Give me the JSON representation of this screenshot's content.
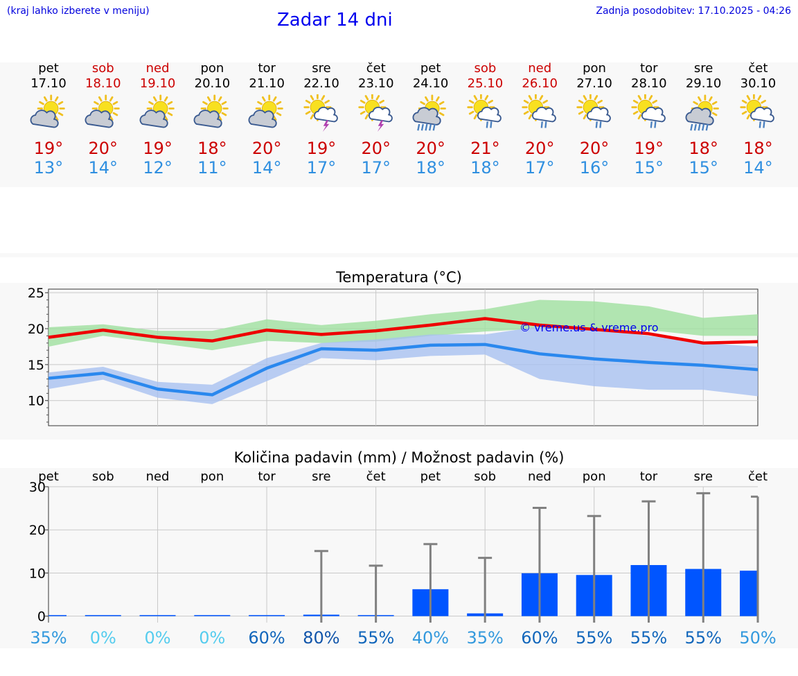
{
  "header": {
    "hint": "(kraj lahko izberete v meniju)",
    "title": "Zadar 14 dni",
    "updated": "Zadnja posodobitev: 17.10.2025 - 04:26"
  },
  "days": [
    {
      "name": "pet",
      "date": "17.10",
      "weekend": false,
      "icon": "partly-cloudy-icon",
      "tmax": "19°",
      "tmin": "13°"
    },
    {
      "name": "sob",
      "date": "18.10",
      "weekend": true,
      "icon": "partly-cloudy-icon",
      "tmax": "20°",
      "tmin": "14°"
    },
    {
      "name": "ned",
      "date": "19.10",
      "weekend": true,
      "icon": "partly-cloudy-icon",
      "tmax": "19°",
      "tmin": "12°"
    },
    {
      "name": "pon",
      "date": "20.10",
      "weekend": false,
      "icon": "partly-cloudy-icon",
      "tmax": "18°",
      "tmin": "11°"
    },
    {
      "name": "tor",
      "date": "21.10",
      "weekend": false,
      "icon": "partly-cloudy-icon",
      "tmax": "20°",
      "tmin": "14°"
    },
    {
      "name": "sre",
      "date": "22.10",
      "weekend": false,
      "icon": "thunderstorm-icon",
      "tmax": "19°",
      "tmin": "17°"
    },
    {
      "name": "čet",
      "date": "23.10",
      "weekend": false,
      "icon": "thunderstorm-icon",
      "tmax": "20°",
      "tmin": "17°"
    },
    {
      "name": "pet",
      "date": "24.10",
      "weekend": false,
      "icon": "heavy-rain-icon",
      "tmax": "20°",
      "tmin": "18°"
    },
    {
      "name": "sob",
      "date": "25.10",
      "weekend": true,
      "icon": "light-rain-icon",
      "tmax": "21°",
      "tmin": "18°"
    },
    {
      "name": "ned",
      "date": "26.10",
      "weekend": true,
      "icon": "light-rain-icon",
      "tmax": "20°",
      "tmin": "17°"
    },
    {
      "name": "pon",
      "date": "27.10",
      "weekend": false,
      "icon": "light-rain-icon",
      "tmax": "20°",
      "tmin": "16°"
    },
    {
      "name": "tor",
      "date": "28.10",
      "weekend": false,
      "icon": "light-rain-icon",
      "tmax": "19°",
      "tmin": "15°"
    },
    {
      "name": "sre",
      "date": "29.10",
      "weekend": false,
      "icon": "heavy-rain-icon",
      "tmax": "18°",
      "tmin": "15°"
    },
    {
      "name": "čet",
      "date": "30.10",
      "weekend": false,
      "icon": "light-rain-icon",
      "tmax": "18°",
      "tmin": "14°"
    }
  ],
  "colors": {
    "max_line": "#ee0000",
    "min_line": "#2a88ee",
    "max_band": "#9fe09f",
    "min_band": "#a8c0f0",
    "precip_bar": "#0055ff",
    "error_bar": "#808080",
    "weekend_text": "#cc0000",
    "lo_text": "#2f8fe0"
  },
  "chart_data": [
    {
      "type": "line",
      "title": "Temperatura (°C)",
      "watermark": "© vreme.us & vreme.pro",
      "ylim": [
        6.5,
        25.5
      ],
      "yticks": [
        "10",
        "15",
        "20",
        "25"
      ],
      "x": [
        0,
        1,
        2,
        3,
        4,
        5,
        6,
        7,
        8,
        9,
        10,
        11,
        12,
        13
      ],
      "series": [
        {
          "name": "max",
          "values": [
            18.8,
            19.8,
            18.8,
            18.3,
            19.8,
            19.2,
            19.7,
            20.5,
            21.4,
            20.5,
            19.9,
            19.3,
            18.0,
            18.2
          ],
          "band_low": [
            17.5,
            19.0,
            18.0,
            17.0,
            18.3,
            18.0,
            18.2,
            19.0,
            19.6,
            20.0,
            20.0,
            19.8,
            19.0,
            19.0
          ],
          "band_high": [
            20.2,
            20.6,
            19.7,
            19.7,
            21.3,
            20.5,
            21.1,
            22.0,
            22.7,
            24.0,
            23.8,
            23.1,
            21.5,
            22.0
          ]
        },
        {
          "name": "min",
          "values": [
            13.1,
            13.8,
            11.6,
            10.8,
            14.5,
            17.2,
            17.0,
            17.7,
            17.8,
            16.5,
            15.8,
            15.3,
            14.9,
            14.3
          ],
          "band_low": [
            11.6,
            12.9,
            10.4,
            9.5,
            12.7,
            15.9,
            15.6,
            16.2,
            16.4,
            13.0,
            12.0,
            11.5,
            11.5,
            10.6
          ],
          "band_high": [
            13.9,
            14.7,
            12.6,
            12.2,
            15.9,
            18.0,
            18.5,
            19.2,
            19.2,
            20.3,
            19.9,
            19.0,
            18.0,
            17.5
          ]
        }
      ]
    },
    {
      "type": "bar",
      "title": "Količina padavin (mm) / Možnost padavin (%)",
      "ylim": [
        -1.5,
        30
      ],
      "yticks": [
        "0",
        "10",
        "20",
        "30"
      ],
      "categories": [
        "pet",
        "sob",
        "ned",
        "pon",
        "tor",
        "sre",
        "čet",
        "pet",
        "sob",
        "ned",
        "pon",
        "tor",
        "sre",
        "čet"
      ],
      "values": [
        0,
        0,
        0,
        0,
        0,
        0.1,
        0,
        6.0,
        0.4,
        9.7,
        9.3,
        11.6,
        10.7,
        10.3
      ],
      "error_high": [
        0,
        0,
        0,
        0,
        0,
        15.1,
        11.7,
        16.7,
        13.5,
        25.1,
        23.2,
        26.6,
        28.5,
        27.7
      ],
      "probability": [
        "35%",
        "0%",
        "0%",
        "0%",
        "60%",
        "80%",
        "55%",
        "40%",
        "35%",
        "60%",
        "55%",
        "55%",
        "55%",
        "50%"
      ],
      "probability_colors": [
        "#3399dd",
        "#55ccee",
        "#55ccee",
        "#55ccee",
        "#1166bb",
        "#1155aa",
        "#1166bb",
        "#3399dd",
        "#3399dd",
        "#1166bb",
        "#1166bb",
        "#1166bb",
        "#1166bb",
        "#3399dd"
      ]
    }
  ]
}
